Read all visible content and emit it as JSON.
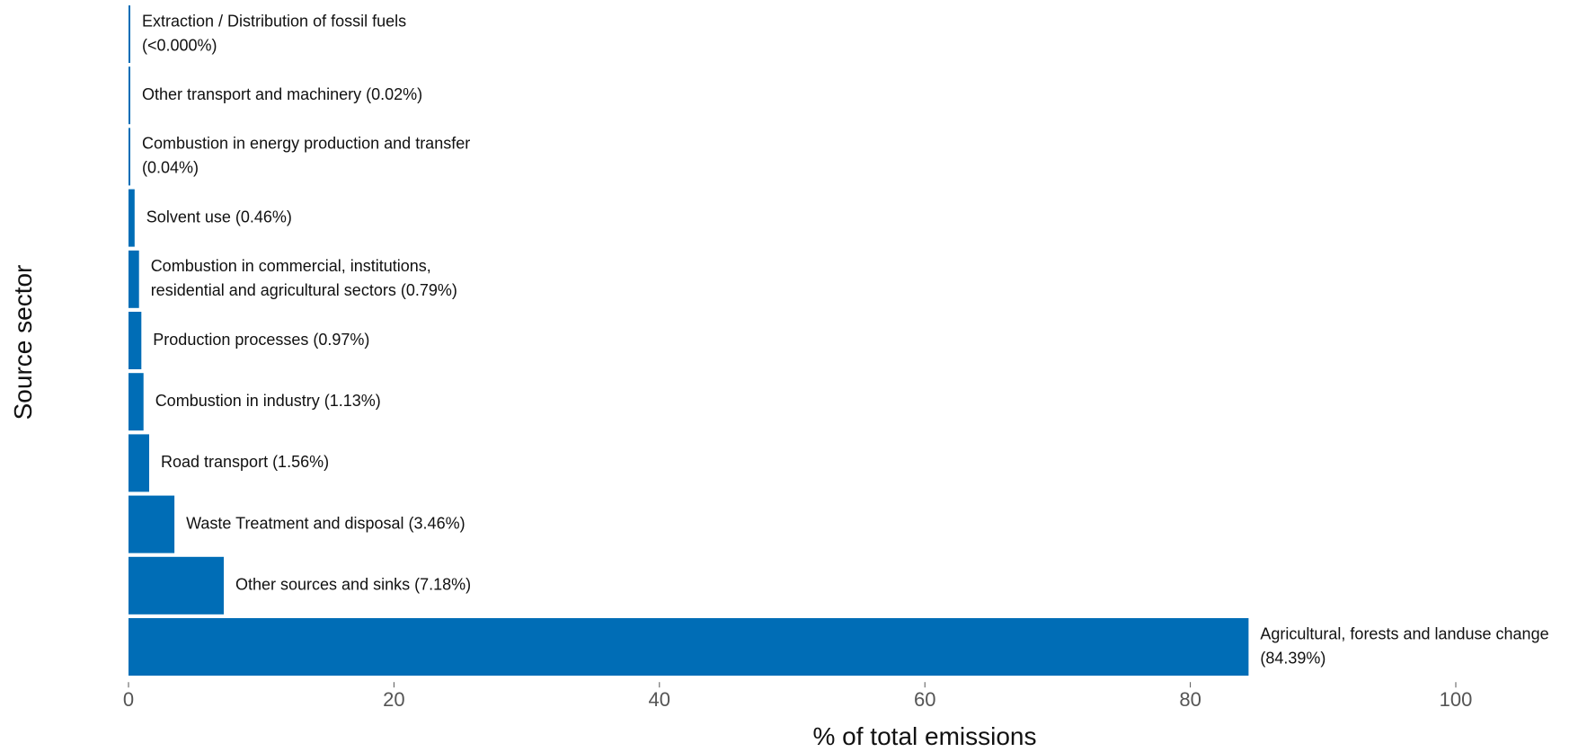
{
  "chart_data": {
    "type": "bar",
    "orientation": "horizontal",
    "title": "",
    "xlabel": "% of total emissions",
    "ylabel": "Source sector",
    "xlim": [
      0,
      100
    ],
    "x_ticks": [
      0,
      20,
      40,
      60,
      80,
      100
    ],
    "grid": false,
    "legend": "none",
    "bar_color": "#006DB6",
    "bars": [
      {
        "category": "Extraction / Distribution of fossil fuels",
        "value": 0.0,
        "label_lines": [
          "Extraction / Distribution of fossil fuels",
          "(<0.000%)"
        ]
      },
      {
        "category": "Other transport and machinery",
        "value": 0.02,
        "label_lines": [
          "Other transport and machinery (0.02%)"
        ]
      },
      {
        "category": "Combustion in energy production and transfer",
        "value": 0.04,
        "label_lines": [
          "Combustion in energy production and transfer",
          "(0.04%)"
        ]
      },
      {
        "category": "Solvent use",
        "value": 0.46,
        "label_lines": [
          "Solvent use (0.46%)"
        ]
      },
      {
        "category": "Combustion in commercial, institutions, residential and agricultural sectors",
        "value": 0.79,
        "label_lines": [
          "Combustion in commercial, institutions,",
          "residential and agricultural sectors (0.79%)"
        ]
      },
      {
        "category": "Production processes",
        "value": 0.97,
        "label_lines": [
          "Production processes (0.97%)"
        ]
      },
      {
        "category": "Combustion in industry",
        "value": 1.13,
        "label_lines": [
          "Combustion in industry (1.13%)"
        ]
      },
      {
        "category": "Road transport",
        "value": 1.56,
        "label_lines": [
          "Road transport (1.56%)"
        ]
      },
      {
        "category": "Waste Treatment and disposal",
        "value": 3.46,
        "label_lines": [
          "Waste Treatment and disposal (3.46%)"
        ]
      },
      {
        "category": "Other sources and sinks",
        "value": 7.18,
        "label_lines": [
          "Other sources and sinks (7.18%)"
        ]
      },
      {
        "category": "Agricultural, forests and landuse change",
        "value": 84.39,
        "label_lines": [
          "Agricultural, forests and landuse change",
          "(84.39%)"
        ]
      }
    ]
  }
}
